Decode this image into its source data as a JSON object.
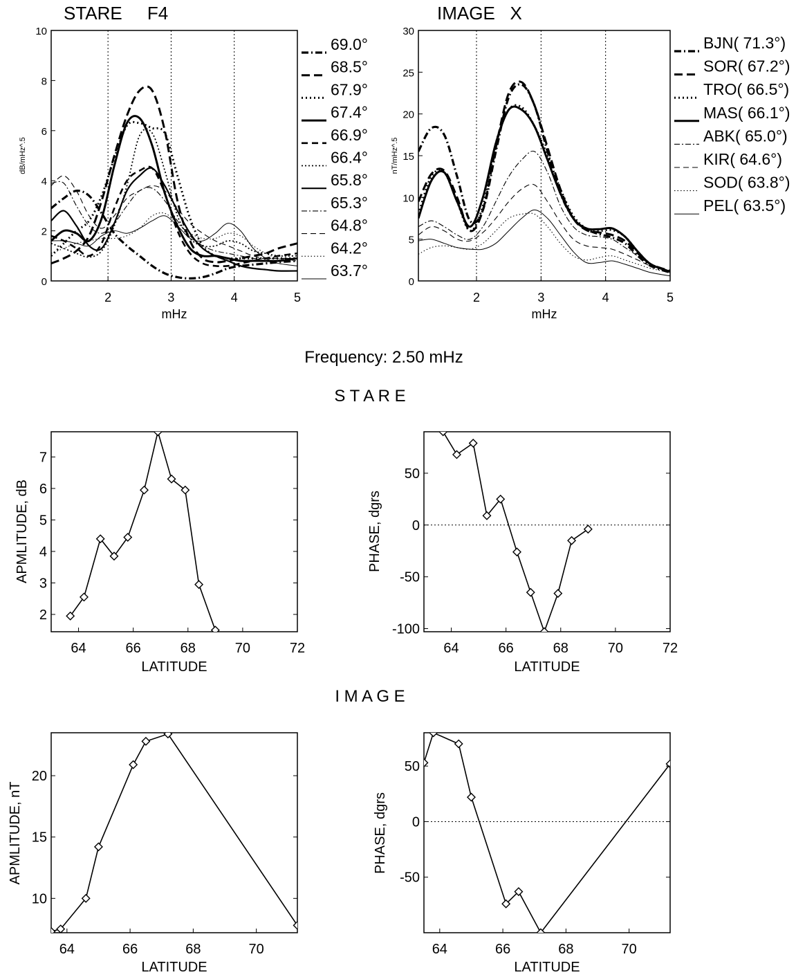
{
  "chart_data": [
    {
      "id": "stare_spectra",
      "type": "line",
      "title": "STARE     F4",
      "xlabel": "mHz",
      "ylabel": "dB/mHz^.5",
      "xlim": [
        1.1,
        5
      ],
      "ylim": [
        0,
        10
      ],
      "xticks": [
        2,
        3,
        4,
        5
      ],
      "yticks": [
        0,
        2,
        4,
        6,
        8,
        10
      ],
      "vlines": [
        2,
        3,
        4
      ],
      "grid": false,
      "legend_position": "right",
      "x": [
        1.1,
        1.3,
        1.5,
        1.7,
        1.9,
        2.1,
        2.3,
        2.5,
        2.7,
        2.9,
        3.1,
        3.3,
        3.5,
        3.7,
        3.9,
        4.1,
        4.3,
        4.5,
        4.7,
        5.0
      ],
      "series": [
        {
          "name": "69.0°",
          "style": "dashdot-thick",
          "values": [
            2.9,
            3.3,
            3.6,
            3.4,
            2.7,
            1.9,
            1.4,
            1.0,
            0.6,
            0.3,
            0.15,
            0.1,
            0.15,
            0.3,
            0.5,
            0.6,
            0.65,
            0.7,
            0.75,
            0.8
          ]
        },
        {
          "name": "68.5°",
          "style": "dash-thick",
          "values": [
            0.7,
            0.9,
            1.2,
            1.8,
            3.2,
            5.0,
            6.6,
            7.6,
            7.6,
            6.0,
            3.2,
            1.6,
            0.9,
            0.75,
            0.8,
            0.9,
            1.0,
            1.1,
            1.3,
            1.5
          ]
        },
        {
          "name": "67.9°",
          "style": "dot-thick",
          "values": [
            1.0,
            1.5,
            2.0,
            2.4,
            3.4,
            4.9,
            6.2,
            6.3,
            6.1,
            5.9,
            4.2,
            2.5,
            1.4,
            1.0,
            0.9,
            0.9,
            0.9,
            0.9,
            0.9,
            0.9
          ]
        },
        {
          "name": "67.4°",
          "style": "solid-thick",
          "values": [
            1.6,
            2.0,
            1.9,
            1.6,
            2.5,
            4.6,
            6.3,
            6.5,
            5.4,
            3.5,
            2.2,
            1.3,
            1.0,
            1.0,
            0.9,
            0.8,
            0.8,
            0.8,
            0.8,
            0.9
          ]
        },
        {
          "name": "66.9°",
          "style": "dash-thick2",
          "values": [
            1.8,
            1.6,
            1.3,
            1.0,
            1.5,
            2.9,
            4.0,
            4.4,
            4.5,
            3.5,
            2.0,
            1.1,
            0.7,
            0.6,
            0.6,
            0.7,
            0.8,
            0.9,
            1.0,
            1.1
          ]
        },
        {
          "name": "66.4°",
          "style": "dot",
          "values": [
            1.5,
            1.3,
            1.1,
            0.95,
            1.2,
            2.2,
            3.8,
            5.8,
            5.9,
            4.4,
            2.6,
            1.7,
            1.4,
            1.4,
            1.6,
            1.5,
            1.2,
            1.1,
            1.0,
            1.0
          ]
        },
        {
          "name": "65.8°",
          "style": "solid-medium",
          "values": [
            2.4,
            2.8,
            2.2,
            1.4,
            1.3,
            2.3,
            3.6,
            4.2,
            4.5,
            3.8,
            2.8,
            1.9,
            1.3,
            1.0,
            0.8,
            0.6,
            0.5,
            0.45,
            0.4,
            0.4
          ]
        },
        {
          "name": "65.3°",
          "style": "dashdot-thin",
          "values": [
            3.9,
            3.9,
            3.0,
            2.2,
            1.9,
            2.3,
            3.0,
            3.6,
            3.7,
            3.2,
            2.4,
            1.8,
            1.4,
            1.2,
            1.1,
            1.0,
            0.9,
            0.9,
            0.9,
            0.9
          ]
        },
        {
          "name": "64.8°",
          "style": "dash-thin",
          "values": [
            3.8,
            4.2,
            3.6,
            2.6,
            2.1,
            2.6,
            3.3,
            3.6,
            3.8,
            3.6,
            2.9,
            2.3,
            1.9,
            1.6,
            1.4,
            1.2,
            1.0,
            0.9,
            0.9,
            0.9
          ]
        },
        {
          "name": "64.2°",
          "style": "dot-thin",
          "values": [
            1.1,
            1.3,
            1.5,
            1.6,
            1.7,
            1.7,
            1.8,
            2.1,
            2.6,
            2.7,
            2.3,
            1.9,
            1.7,
            1.7,
            1.9,
            1.8,
            1.4,
            1.1,
            0.9,
            0.8
          ]
        },
        {
          "name": "63.7°",
          "style": "solid-thin",
          "values": [
            1.6,
            1.6,
            1.5,
            1.4,
            1.8,
            2.0,
            1.9,
            2.1,
            2.4,
            2.6,
            2.2,
            1.7,
            1.6,
            1.9,
            2.3,
            2.0,
            1.3,
            0.9,
            0.7,
            0.6
          ]
        }
      ]
    },
    {
      "id": "image_spectra",
      "type": "line",
      "title": "IMAGE   X",
      "xlabel": "mHz",
      "ylabel": "nT/mHz^.5",
      "xlim": [
        1.1,
        5
      ],
      "ylim": [
        0,
        30
      ],
      "xticks": [
        2,
        3,
        4,
        5
      ],
      "yticks": [
        0,
        5,
        10,
        15,
        20,
        25,
        30
      ],
      "vlines": [
        2,
        3,
        4
      ],
      "grid": false,
      "legend_position": "right",
      "x": [
        1.1,
        1.3,
        1.5,
        1.7,
        1.9,
        2.1,
        2.3,
        2.5,
        2.7,
        2.9,
        3.1,
        3.3,
        3.5,
        3.7,
        3.9,
        4.1,
        4.3,
        4.5,
        4.7,
        5.0
      ],
      "series": [
        {
          "name": "BJN( 71.3°)",
          "style": "dashdot-thick",
          "values": [
            15.5,
            18.3,
            17.5,
            12.5,
            7.2,
            8.5,
            15.5,
            22.0,
            23.5,
            21.0,
            15.5,
            10.5,
            7.5,
            6.2,
            5.6,
            5.2,
            4.5,
            3.0,
            1.8,
            1.0
          ]
        },
        {
          "name": "SOR( 67.2°)",
          "style": "dash-thick",
          "values": [
            9.5,
            12.8,
            13.2,
            10.0,
            6.0,
            8.5,
            16.0,
            22.5,
            23.8,
            21.0,
            16.0,
            11.0,
            7.5,
            6.1,
            5.8,
            5.5,
            4.8,
            3.3,
            2.0,
            1.2
          ]
        },
        {
          "name": "TRO( 66.5°)",
          "style": "dot-thick",
          "values": [
            8.0,
            12.5,
            13.0,
            9.5,
            6.0,
            9.0,
            16.5,
            20.5,
            20.8,
            18.5,
            15.0,
            11.0,
            7.8,
            6.3,
            6.0,
            6.1,
            5.3,
            3.5,
            2.0,
            1.1
          ]
        },
        {
          "name": "MAS( 66.1°)",
          "style": "solid-thick",
          "values": [
            7.5,
            12.0,
            13.0,
            9.5,
            6.5,
            10.0,
            16.5,
            20.5,
            20.5,
            18.5,
            14.5,
            10.5,
            7.5,
            6.3,
            6.2,
            6.3,
            5.3,
            3.5,
            2.0,
            1.1
          ]
        },
        {
          "name": "ABK( 65.0°)",
          "style": "dashdot-thin",
          "values": [
            6.5,
            7.2,
            6.5,
            5.5,
            5.0,
            6.5,
            9.5,
            12.5,
            14.5,
            15.5,
            13.0,
            9.0,
            6.5,
            5.5,
            5.3,
            5.0,
            4.0,
            3.0,
            2.0,
            1.2
          ]
        },
        {
          "name": "KIR( 64.6°)",
          "style": "dash-thin",
          "values": [
            5.5,
            6.5,
            6.0,
            5.0,
            4.8,
            5.8,
            7.5,
            9.5,
            11.0,
            11.5,
            9.5,
            7.0,
            5.0,
            4.2,
            4.0,
            3.8,
            3.2,
            2.5,
            1.8,
            1.2
          ]
        },
        {
          "name": "SOD( 63.8°)",
          "style": "dot-thin",
          "values": [
            3.2,
            4.0,
            4.2,
            4.0,
            3.8,
            4.5,
            6.0,
            7.5,
            8.0,
            8.0,
            6.5,
            4.5,
            3.0,
            2.5,
            2.8,
            3.0,
            2.5,
            2.0,
            1.5,
            1.0
          ]
        },
        {
          "name": "PEL( 63.5°)",
          "style": "solid-thin",
          "values": [
            4.8,
            5.0,
            4.5,
            4.0,
            3.8,
            3.8,
            4.5,
            6.0,
            7.5,
            8.5,
            7.5,
            5.5,
            3.5,
            2.2,
            2.2,
            2.4,
            2.0,
            1.5,
            1.0,
            0.6
          ]
        }
      ]
    },
    {
      "id": "stare_amplitude",
      "type": "line",
      "xlabel": "LATITUDE",
      "ylabel": "APMLITUDE, dB",
      "xlim": [
        63,
        72
      ],
      "ylim": [
        1.45,
        7.8
      ],
      "xticks": [
        64,
        66,
        68,
        70,
        72
      ],
      "yticks": [
        2,
        3,
        4,
        5,
        6,
        7
      ],
      "grid": false,
      "marker": "diamond",
      "x": [
        63.7,
        64.2,
        64.8,
        65.3,
        65.8,
        66.4,
        66.9,
        67.4,
        67.9,
        68.4,
        69.0
      ],
      "y": [
        1.95,
        2.55,
        4.4,
        3.85,
        4.45,
        5.95,
        7.8,
        6.3,
        5.95,
        2.95,
        1.5
      ]
    },
    {
      "id": "stare_phase",
      "type": "line",
      "xlabel": "LATITUDE",
      "ylabel": "PHASE, dgrs",
      "xlim": [
        63,
        72
      ],
      "ylim": [
        -103,
        90
      ],
      "xticks": [
        64,
        66,
        68,
        70,
        72
      ],
      "yticks": [
        -100,
        -50,
        0,
        50
      ],
      "zero_line": true,
      "grid": false,
      "marker": "diamond",
      "x": [
        63.7,
        64.2,
        64.8,
        65.3,
        65.8,
        66.4,
        66.9,
        67.4,
        67.9,
        68.4,
        69.0
      ],
      "y": [
        90,
        68,
        79,
        9,
        25,
        -26,
        -65,
        -103,
        -66,
        -15,
        -4
      ]
    },
    {
      "id": "image_amplitude",
      "type": "line",
      "xlabel": "LATITUDE",
      "ylabel": "APMLITUDE, nT",
      "xlim": [
        63.5,
        71.3
      ],
      "ylim": [
        7.2,
        23.5
      ],
      "xticks": [
        64,
        66,
        68,
        70
      ],
      "yticks": [
        10,
        15,
        20
      ],
      "grid": false,
      "marker": "diamond",
      "x": [
        63.5,
        63.8,
        64.6,
        65.0,
        66.1,
        66.5,
        67.2,
        71.3
      ],
      "y": [
        7.3,
        7.5,
        10.0,
        14.2,
        20.9,
        22.8,
        23.4,
        7.8
      ]
    },
    {
      "id": "image_phase",
      "type": "line",
      "xlabel": "LATITUDE",
      "ylabel": "PHASE, dgrs",
      "xlim": [
        63.5,
        71.3
      ],
      "ylim": [
        -100,
        80
      ],
      "xticks": [
        64,
        66,
        68,
        70
      ],
      "yticks": [
        -50,
        0,
        50
      ],
      "zero_line": true,
      "grid": false,
      "marker": "diamond",
      "x": [
        63.5,
        63.8,
        64.6,
        65.0,
        66.1,
        66.5,
        67.2,
        71.3
      ],
      "y": [
        53,
        80,
        70,
        22,
        -74,
        -63,
        -100,
        52
      ]
    }
  ],
  "headings": {
    "frequency": "Frequency: 2.50 mHz",
    "stare": "S T A R E",
    "image": "I M A G E"
  },
  "colors": {
    "line": "#000000",
    "background": "#ffffff",
    "grid_line": "#333333"
  }
}
